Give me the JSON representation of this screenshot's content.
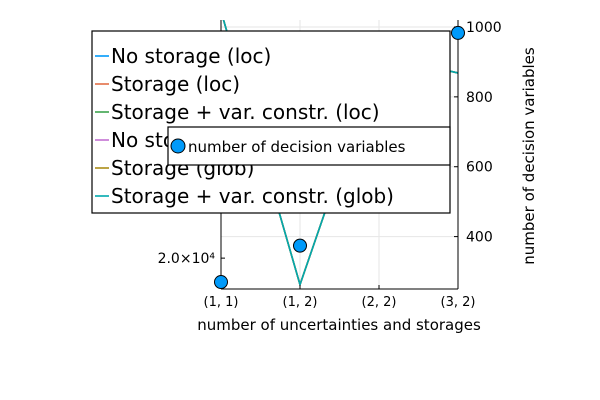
{
  "chart_data": [
    {
      "type": "line",
      "xlabel": "number of uncertainties and storages",
      "ylabel": "",
      "categories": [
        "(1, 1)",
        "(1, 2)",
        "(2, 2)",
        "(3, 2)"
      ],
      "yticks": [
        {
          "value": 20000,
          "label": "2.0×10⁴"
        }
      ],
      "ylim": [
        16500,
        47000
      ],
      "legend_position": "top-left",
      "series": [
        {
          "name": "No storage (loc)",
          "color": "#009AFA",
          "values": [
            48000,
            17000,
            43000,
            41000
          ]
        },
        {
          "name": "Storage (loc)",
          "color": "#E36F47",
          "values": [
            48000,
            17000,
            43000,
            41000
          ]
        },
        {
          "name": "Storage + var. constr. (loc)",
          "color": "#3EA44E",
          "values": [
            48000,
            17000,
            43000,
            41000
          ]
        },
        {
          "name": "No storage (glob)",
          "color": "#C371D2",
          "values": [
            48000,
            17000,
            43000,
            41000
          ]
        },
        {
          "name": "Storage (glob)",
          "color": "#AC8E18",
          "values": [
            48000,
            17000,
            43000,
            41000
          ]
        },
        {
          "name": "Storage + var. constr. (glob)",
          "color": "#00A9AD",
          "values": [
            48000,
            17000,
            43000,
            41000
          ]
        }
      ]
    },
    {
      "type": "scatter",
      "ylabel": "number of decision variables",
      "yticks": [
        400,
        600,
        800,
        1000
      ],
      "ylim": [
        250,
        1020
      ],
      "legend_position": "top-left",
      "series": [
        {
          "name": "number of decision variables",
          "color": "#009AFA",
          "categories": [
            "(1, 1)",
            "(1, 2)",
            "(3, 2)"
          ],
          "values": [
            270,
            374,
            983
          ]
        }
      ]
    }
  ]
}
